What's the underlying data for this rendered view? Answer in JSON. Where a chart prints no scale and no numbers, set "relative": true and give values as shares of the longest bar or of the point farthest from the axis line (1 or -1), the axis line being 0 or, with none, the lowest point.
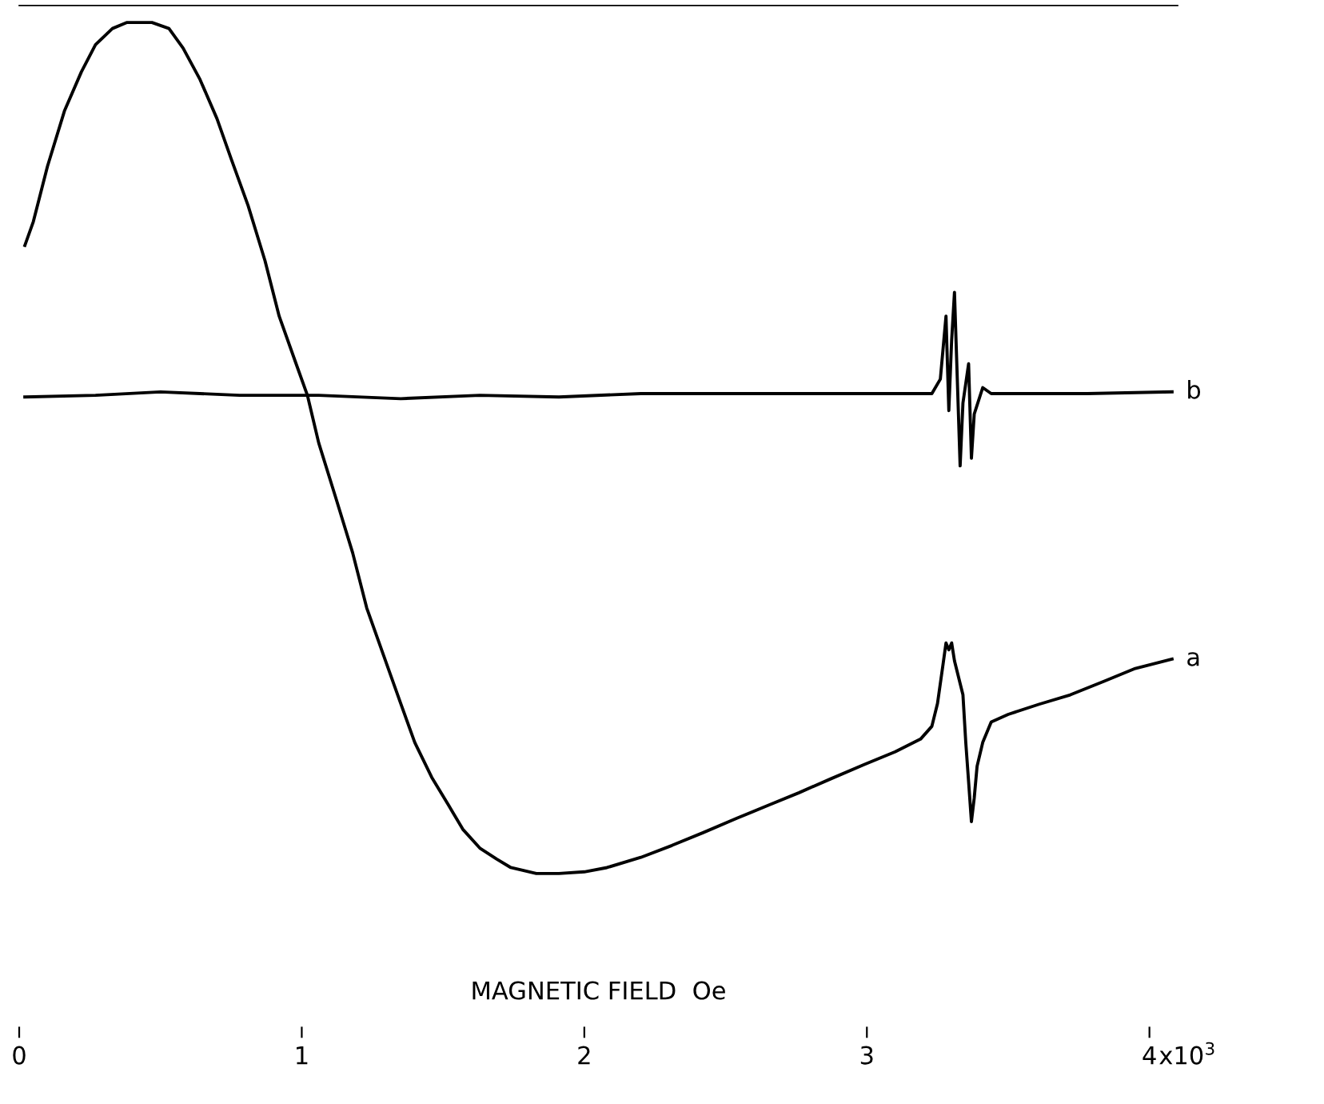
{
  "chart_data": {
    "type": "line",
    "relative": true,
    "xlabel": "MAGNETIC FIELD  Oe",
    "xlim": [
      0,
      4.1
    ],
    "xticks": [
      0,
      1,
      2,
      3,
      4
    ],
    "annotations": [
      "x10$^{3}$"
    ],
    "tick_labels": "x",
    "grid": false,
    "legend": false,
    "marker": "none",
    "line_style": "solid",
    "series": [
      {
        "name": "a",
        "color": "#000000",
        "x": [
          0.02,
          0.05,
          0.1,
          0.16,
          0.22,
          0.27,
          0.33,
          0.38,
          0.47,
          0.53,
          0.58,
          0.64,
          0.7,
          0.75,
          0.81,
          0.87,
          0.92,
          0.98,
          1.02,
          1.06,
          1.12,
          1.18,
          1.23,
          1.29,
          1.35,
          1.4,
          1.46,
          1.52,
          1.57,
          1.63,
          1.69,
          1.74,
          1.83,
          1.91,
          2.0,
          2.08,
          2.2,
          2.31,
          2.42,
          2.54,
          2.65,
          2.76,
          2.87,
          2.99,
          3.1,
          3.19,
          3.23,
          3.25,
          3.27,
          3.28,
          3.29,
          3.3,
          3.31,
          3.34,
          3.35,
          3.36,
          3.37,
          3.38,
          3.39,
          3.41,
          3.44,
          3.5,
          3.61,
          3.72,
          3.84,
          3.95,
          4.08
        ],
        "values": [
          0.738,
          0.766,
          0.831,
          0.896,
          0.942,
          0.974,
          0.993,
          1.0,
          1.0,
          0.993,
          0.97,
          0.933,
          0.887,
          0.84,
          0.785,
          0.72,
          0.655,
          0.599,
          0.562,
          0.506,
          0.442,
          0.377,
          0.312,
          0.256,
          0.2,
          0.154,
          0.113,
          0.08,
          0.052,
          0.03,
          0.017,
          0.007,
          0,
          0,
          0.002,
          0.007,
          0.019,
          0.033,
          0.048,
          0.065,
          0.08,
          0.095,
          0.111,
          0.128,
          0.143,
          0.158,
          0.173,
          0.2,
          0.247,
          0.271,
          0.263,
          0.271,
          0.25,
          0.21,
          0.154,
          0.108,
          0.061,
          0.089,
          0.126,
          0.154,
          0.178,
          0.187,
          0.199,
          0.21,
          0.226,
          0.241,
          0.252
        ]
      },
      {
        "name": "b",
        "color": "#000000",
        "x": [
          0.02,
          0.27,
          0.5,
          0.78,
          1.06,
          1.35,
          1.63,
          1.91,
          2.2,
          2.48,
          2.76,
          3.04,
          3.23,
          3.26,
          3.28,
          3.29,
          3.3,
          3.31,
          3.32,
          3.33,
          3.34,
          3.36,
          3.37,
          3.38,
          3.41,
          3.44,
          3.78,
          4.08
        ],
        "values": [
          0.56,
          0.562,
          0.566,
          0.562,
          0.562,
          0.558,
          0.562,
          0.56,
          0.564,
          0.564,
          0.564,
          0.564,
          0.564,
          0.581,
          0.655,
          0.544,
          0.627,
          0.683,
          0.581,
          0.479,
          0.553,
          0.599,
          0.488,
          0.54,
          0.571,
          0.564,
          0.564,
          0.566
        ]
      }
    ]
  }
}
